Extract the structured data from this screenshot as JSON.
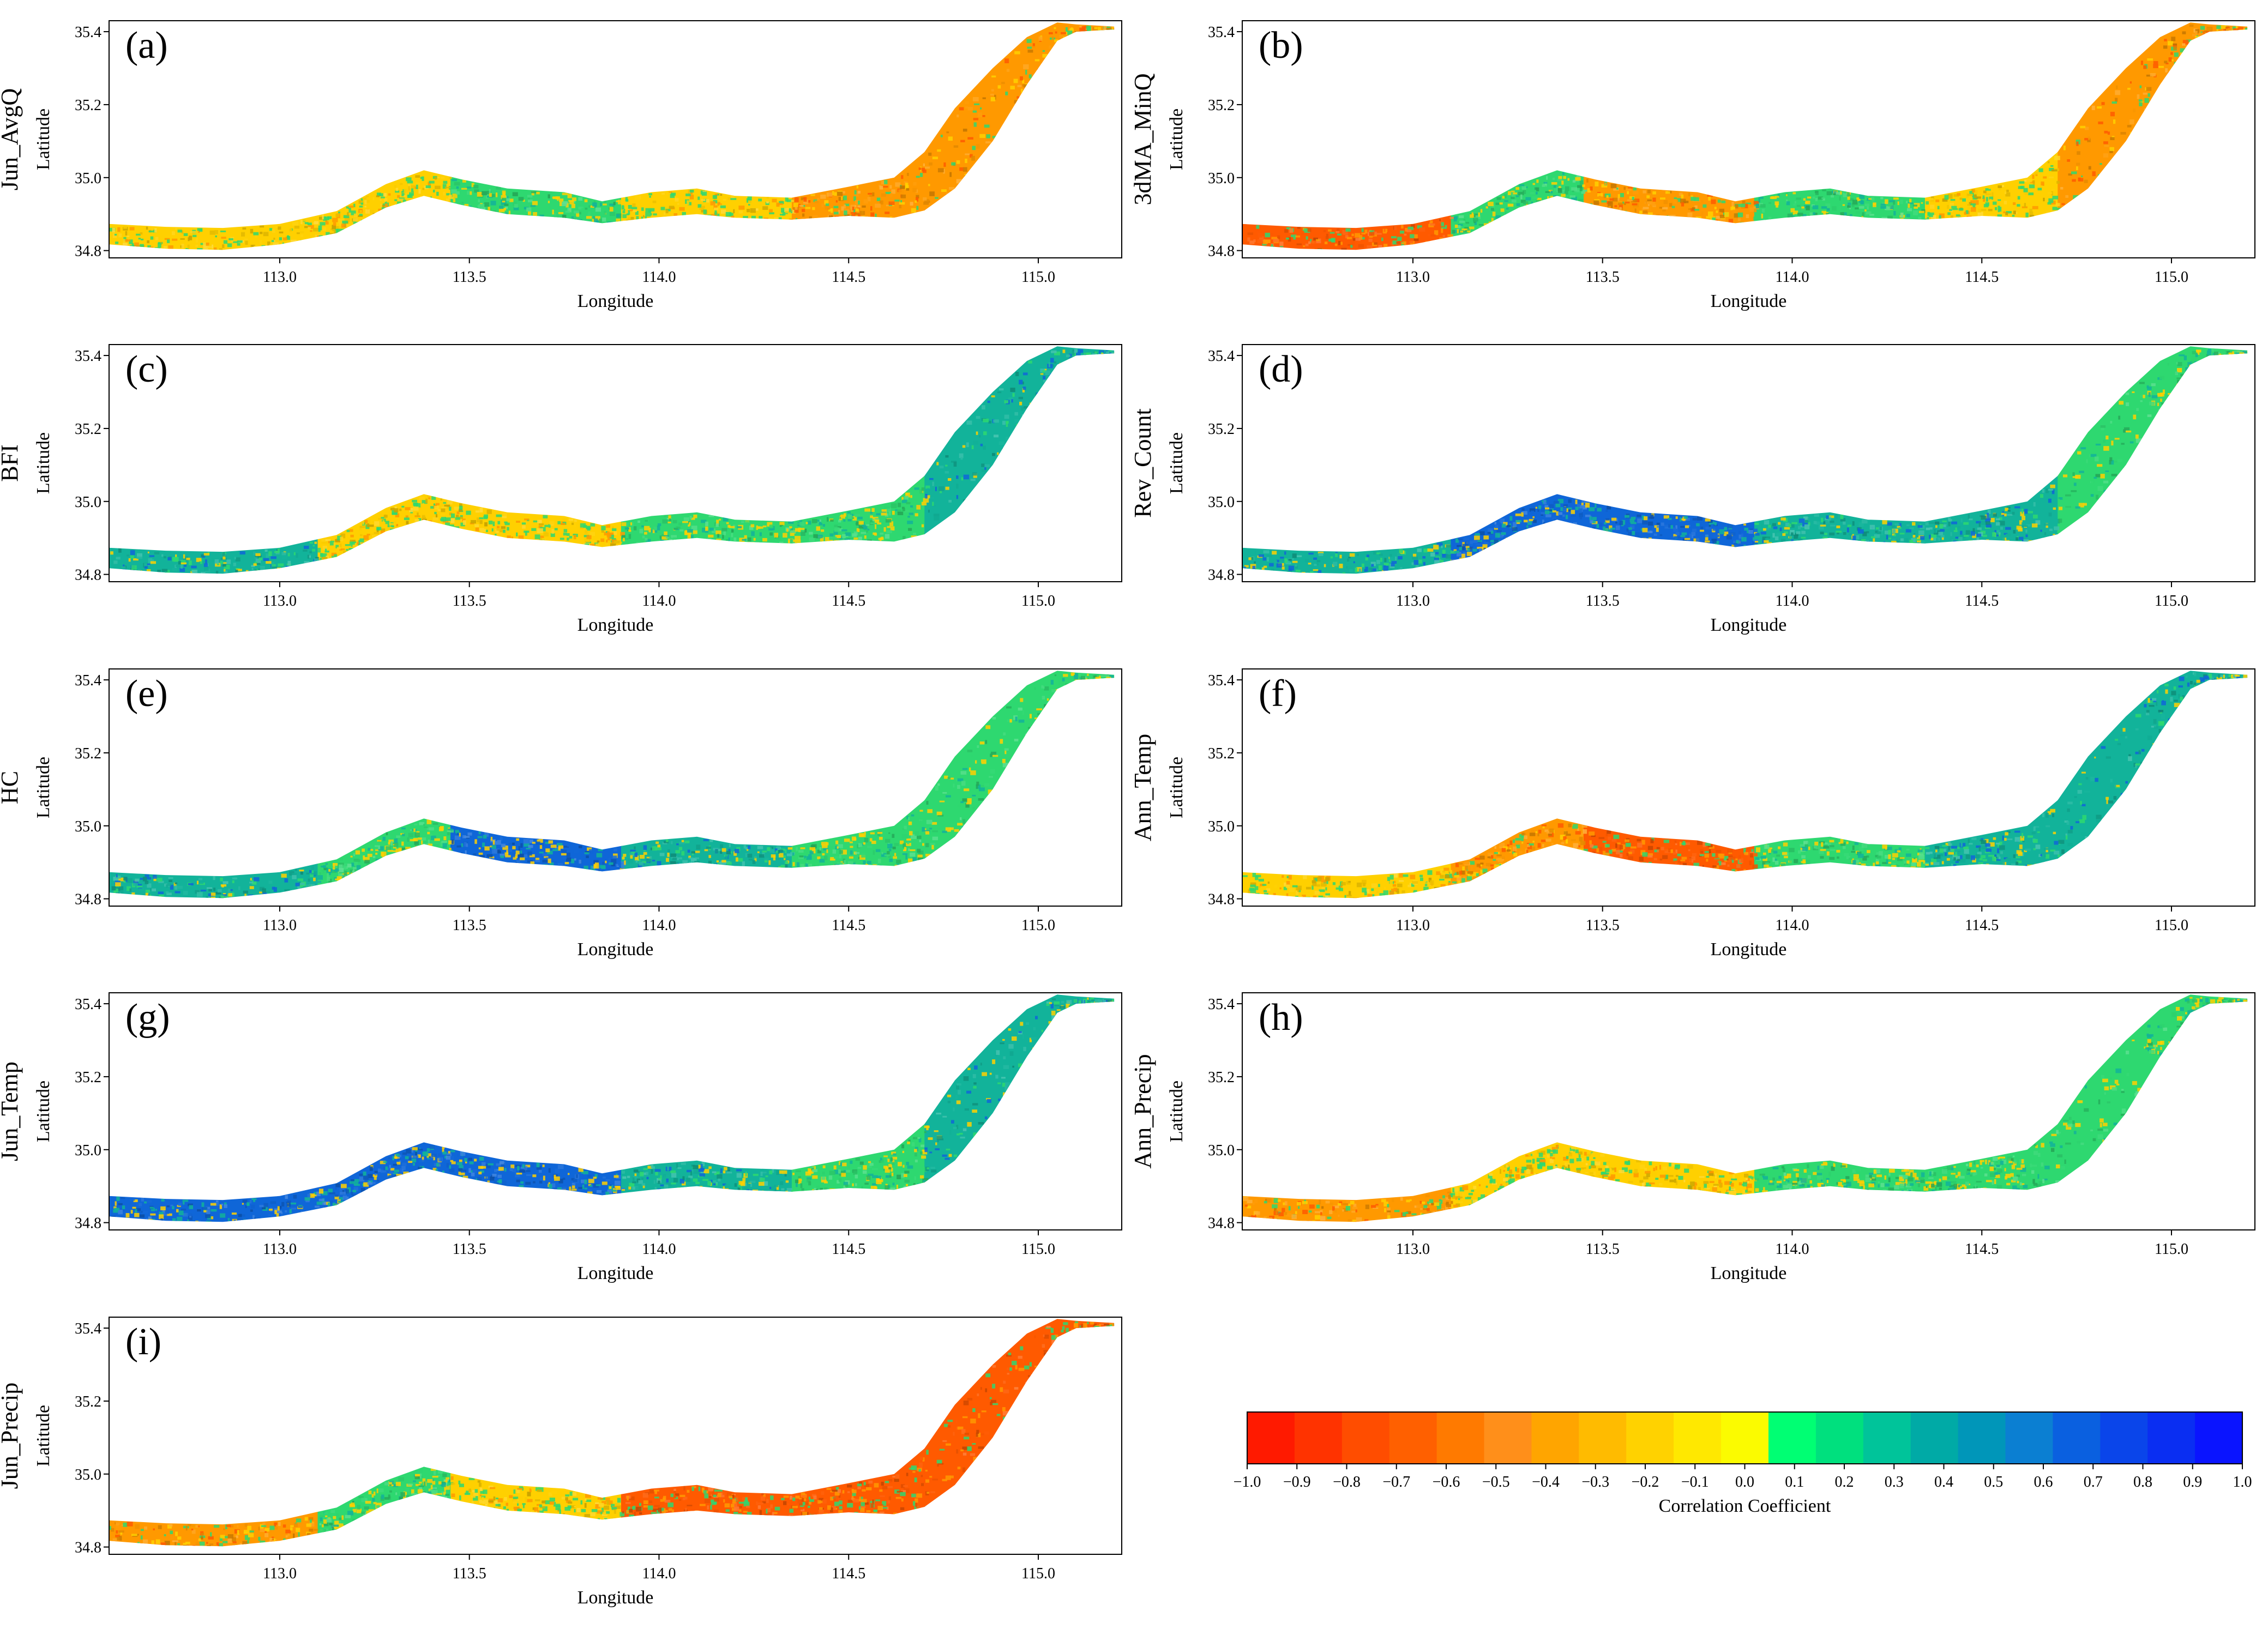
{
  "figure": {
    "colorbar": {
      "title": "Correlation Coefficient",
      "ticks": [
        "−1.0",
        "−0.9",
        "−0.8",
        "−0.7",
        "−0.6",
        "−0.5",
        "−0.4",
        "−0.3",
        "−0.2",
        "−0.1",
        "0.0",
        "0.1",
        "0.2",
        "0.3",
        "0.4",
        "0.5",
        "0.6",
        "0.7",
        "0.8",
        "0.9",
        "1.0"
      ],
      "colors": [
        "#ff1a00",
        "#ff3300",
        "#ff4d00",
        "#ff6000",
        "#ff7a00",
        "#ff8f1a",
        "#ffa500",
        "#ffbb00",
        "#ffd200",
        "#ffe800",
        "#fbfb00",
        "#00ff73",
        "#00e07e",
        "#00c49a",
        "#00aaa6",
        "#0096b9",
        "#0b7fd2",
        "#0a60e0",
        "#0a45ea",
        "#0a2ef2",
        "#0a14ff"
      ]
    },
    "map_colors": {
      "strong_negative": "#ff5a00",
      "negative": "#ff9900",
      "weak_negative": "#ffd000",
      "weak_positive": "#2ed870",
      "positive": "#12b39a",
      "strong_positive": "#0f66d8"
    }
  },
  "chart_data": [
    {
      "type": "heatmap",
      "panel": "(a)",
      "variable": "Jun_AvgQ",
      "xlabel": "Longitude",
      "ylabel": "Latitude",
      "xlim": [
        112.55,
        115.22
      ],
      "ylim": [
        34.78,
        35.43
      ],
      "xticks": [
        "113.0",
        "113.5",
        "114.0",
        "114.5",
        "115.0"
      ],
      "yticks": [
        "34.8",
        "35.0",
        "35.2",
        "35.4"
      ],
      "zones": [
        "weak_negative",
        "weak_negative",
        "weak_positive",
        "weak_negative",
        "negative",
        "negative"
      ]
    },
    {
      "type": "heatmap",
      "panel": "(b)",
      "variable": "3dMA_MinQ",
      "xlabel": "Longitude",
      "ylabel": "Latitude",
      "xlim": [
        112.55,
        115.22
      ],
      "ylim": [
        34.78,
        35.43
      ],
      "xticks": [
        "113.0",
        "113.5",
        "114.0",
        "114.5",
        "115.0"
      ],
      "yticks": [
        "34.8",
        "35.0",
        "35.2",
        "35.4"
      ],
      "zones": [
        "strong_negative",
        "weak_positive",
        "negative",
        "weak_positive",
        "weak_negative",
        "negative"
      ]
    },
    {
      "type": "heatmap",
      "panel": "(c)",
      "variable": "BFI",
      "xlabel": "Longitude",
      "ylabel": "Latitude",
      "xlim": [
        112.55,
        115.22
      ],
      "ylim": [
        34.78,
        35.43
      ],
      "xticks": [
        "113.0",
        "113.5",
        "114.0",
        "114.5",
        "115.0"
      ],
      "yticks": [
        "34.8",
        "35.0",
        "35.2",
        "35.4"
      ],
      "zones": [
        "positive",
        "weak_negative",
        "weak_negative",
        "weak_positive",
        "weak_positive",
        "positive"
      ]
    },
    {
      "type": "heatmap",
      "panel": "(d)",
      "variable": "Rev_Count",
      "xlabel": "Longitude",
      "ylabel": "Latitude",
      "xlim": [
        112.55,
        115.22
      ],
      "ylim": [
        34.78,
        35.43
      ],
      "xticks": [
        "113.0",
        "113.5",
        "114.0",
        "114.5",
        "115.0"
      ],
      "yticks": [
        "34.8",
        "35.0",
        "35.2",
        "35.4"
      ],
      "zones": [
        "positive",
        "strong_positive",
        "strong_positive",
        "positive",
        "positive",
        "weak_positive"
      ]
    },
    {
      "type": "heatmap",
      "panel": "(e)",
      "variable": "HC",
      "xlabel": "Longitude",
      "ylabel": "Latitude",
      "xlim": [
        112.55,
        115.22
      ],
      "ylim": [
        34.78,
        35.43
      ],
      "xticks": [
        "113.0",
        "113.5",
        "114.0",
        "114.5",
        "115.0"
      ],
      "yticks": [
        "34.8",
        "35.0",
        "35.2",
        "35.4"
      ],
      "zones": [
        "positive",
        "weak_positive",
        "strong_positive",
        "positive",
        "weak_positive",
        "weak_positive"
      ]
    },
    {
      "type": "heatmap",
      "panel": "(f)",
      "variable": "Ann_Temp",
      "xlabel": "Longitude",
      "ylabel": "Latitude",
      "xlim": [
        112.55,
        115.22
      ],
      "ylim": [
        34.78,
        35.43
      ],
      "xticks": [
        "113.0",
        "113.5",
        "114.0",
        "114.5",
        "115.0"
      ],
      "yticks": [
        "34.8",
        "35.0",
        "35.2",
        "35.4"
      ],
      "zones": [
        "weak_negative",
        "negative",
        "strong_negative",
        "weak_positive",
        "positive",
        "positive"
      ]
    },
    {
      "type": "heatmap",
      "panel": "(g)",
      "variable": "Jun_Temp",
      "xlabel": "Longitude",
      "ylabel": "Latitude",
      "xlim": [
        112.55,
        115.22
      ],
      "ylim": [
        34.78,
        35.43
      ],
      "xticks": [
        "113.0",
        "113.5",
        "114.0",
        "114.5",
        "115.0"
      ],
      "yticks": [
        "34.8",
        "35.0",
        "35.2",
        "35.4"
      ],
      "zones": [
        "strong_positive",
        "strong_positive",
        "strong_positive",
        "positive",
        "weak_positive",
        "positive"
      ]
    },
    {
      "type": "heatmap",
      "panel": "(h)",
      "variable": "Ann_Precip",
      "xlabel": "Longitude",
      "ylabel": "Latitude",
      "xlim": [
        112.55,
        115.22
      ],
      "ylim": [
        34.78,
        35.43
      ],
      "xticks": [
        "113.0",
        "113.5",
        "114.0",
        "114.5",
        "115.0"
      ],
      "yticks": [
        "34.8",
        "35.0",
        "35.2",
        "35.4"
      ],
      "zones": [
        "negative",
        "weak_negative",
        "weak_negative",
        "weak_positive",
        "weak_positive",
        "weak_positive"
      ]
    },
    {
      "type": "heatmap",
      "panel": "(i)",
      "variable": "Jun_Precip",
      "xlabel": "Longitude",
      "ylabel": "Latitude",
      "xlim": [
        112.55,
        115.22
      ],
      "ylim": [
        34.78,
        35.43
      ],
      "xticks": [
        "113.0",
        "113.5",
        "114.0",
        "114.5",
        "115.0"
      ],
      "yticks": [
        "34.8",
        "35.0",
        "35.2",
        "35.4"
      ],
      "zones": [
        "negative",
        "weak_positive",
        "weak_negative",
        "strong_negative",
        "strong_negative",
        "strong_negative"
      ]
    }
  ]
}
